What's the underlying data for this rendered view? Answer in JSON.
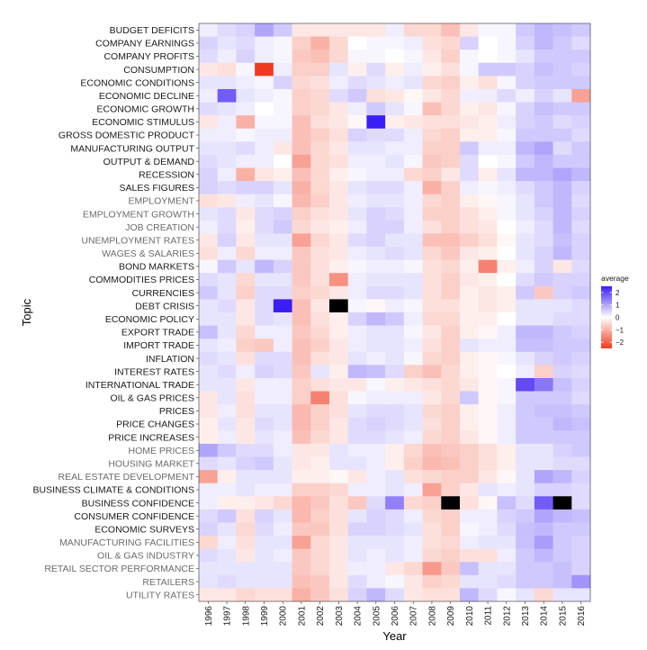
{
  "chart_data": {
    "type": "heatmap",
    "xlabel": "Year",
    "ylabel": "Topic",
    "x": [
      "1996",
      "1997",
      "1998",
      "1999",
      "2000",
      "2001",
      "2002",
      "2003",
      "2004",
      "2005",
      "2006",
      "2007",
      "2008",
      "2009",
      "2010",
      "2011",
      "2012",
      "2013",
      "2014",
      "2015",
      "2016"
    ],
    "y": [
      "BUDGET DEFICITS",
      "COMPANY EARNINGS",
      "COMPANY PROFITS",
      "CONSUMPTION",
      "ECONOMIC CONDITIONS",
      "ECONOMIC DECLINE",
      "ECONOMIC GROWTH",
      "ECONOMIC STIMULUS",
      "GROSS DOMESTIC PRODUCT",
      "MANUFACTURING OUTPUT",
      "OUTPUT & DEMAND",
      "RECESSION",
      "SALES FIGURES",
      "EMPLOYMENT",
      "EMPLOYMENT GROWTH",
      "JOB CREATION",
      "UNEMPLOYMENT RATES",
      "WAGES & SALARIES",
      "BOND MARKETS",
      "COMMODITIES PRICES",
      "CURRENCIES",
      "DEBT CRISIS",
      "ECONOMIC POLICY",
      "EXPORT TRADE",
      "IMPORT TRADE",
      "INFLATION",
      "INTEREST RATES",
      "INTERNATIONAL TRADE",
      "OIL & GAS PRICES",
      "PRICES",
      "PRICE CHANGES",
      "PRICE INCREASES",
      "HOME PRICES",
      "HOUSING MARKET",
      "REAL ESTATE DEVELOPMENT",
      "BUSINESS CLIMATE & CONDITIONS",
      "BUSINESS CONFIDENCE",
      "CONSUMER CONFIDENCE",
      "ECONOMIC SURVEYS",
      "MANUFACTURING FACILITIES",
      "OIL & GAS INDUSTRY",
      "RETAIL SECTOR PERFORMANCE",
      "RETAILERS",
      "UTILITY RATES"
    ],
    "muted_rows": [
      "EMPLOYMENT",
      "EMPLOYMENT GROWTH",
      "JOB CREATION",
      "UNEMPLOYMENT RATES",
      "WAGES & SALARIES",
      "HOME PRICES",
      "HOUSING MARKET",
      "REAL ESTATE DEVELOPMENT",
      "MANUFACTURING FACILITIES",
      "OIL & GAS INDUSTRY",
      "RETAIL SECTOR PERFORMANCE",
      "RETAILERS",
      "UTILITY RATES"
    ],
    "values": [
      [
        0.2,
        0.4,
        0.5,
        1.0,
        0.6,
        -0.3,
        -0.3,
        -0.3,
        -0.3,
        -0.3,
        0.2,
        -0.5,
        -0.5,
        -0.8,
        -0.3,
        0.1,
        0.1,
        0.6,
        0.8,
        0.7,
        0.6
      ],
      [
        0.5,
        0.3,
        0.4,
        0.2,
        0.1,
        -0.6,
        -1.0,
        -0.5,
        0.0,
        0.1,
        0.1,
        0.2,
        -0.4,
        -0.5,
        0.5,
        0.0,
        0.1,
        0.5,
        0.8,
        0.6,
        0.4
      ],
      [
        0.4,
        0.2,
        0.5,
        0.2,
        0.1,
        -0.7,
        -0.8,
        -0.5,
        0.1,
        0.1,
        0.0,
        0.1,
        -0.3,
        -0.6,
        0.1,
        0.0,
        0.1,
        0.3,
        0.6,
        0.6,
        0.6
      ],
      [
        -0.3,
        -0.4,
        0.1,
        -2.5,
        0.2,
        -0.6,
        -0.6,
        0.3,
        -0.2,
        0.4,
        -0.2,
        0.2,
        -0.2,
        -0.4,
        0.1,
        0.6,
        0.6,
        0.5,
        0.7,
        0.6,
        0.5
      ],
      [
        0.3,
        0.3,
        0.2,
        0.1,
        0.5,
        -0.5,
        -0.4,
        0.2,
        0.4,
        0.3,
        0.2,
        0.3,
        -0.5,
        -0.6,
        -0.2,
        -0.4,
        0.1,
        0.5,
        0.6,
        0.6,
        0.6
      ],
      [
        0.2,
        1.8,
        0.3,
        0.2,
        0.1,
        -0.6,
        -0.5,
        0.4,
        0.6,
        -0.4,
        -0.3,
        -0.1,
        -0.3,
        -0.5,
        0.2,
        0.2,
        0.4,
        0.2,
        0.5,
        0.3,
        -1.2
      ],
      [
        0.4,
        0.3,
        0.2,
        0.0,
        0.1,
        -0.6,
        -0.5,
        -0.3,
        0.2,
        0.6,
        0.3,
        0.1,
        -0.8,
        -0.5,
        -0.2,
        -0.3,
        0.1,
        0.5,
        0.7,
        0.6,
        0.6
      ],
      [
        -0.3,
        0.2,
        -1.0,
        0.1,
        0.1,
        -0.8,
        -0.4,
        -0.3,
        -0.1,
        2.5,
        -0.2,
        -0.3,
        -0.4,
        -0.4,
        -0.3,
        -0.2,
        0.2,
        0.5,
        0.6,
        0.4,
        0.5
      ],
      [
        0.2,
        0.2,
        0.1,
        0.2,
        0.2,
        -0.8,
        -0.6,
        -0.4,
        0.5,
        0.4,
        0.4,
        0.2,
        -0.5,
        -0.6,
        -0.2,
        -0.2,
        0.1,
        0.6,
        0.6,
        0.6,
        0.4
      ],
      [
        0.3,
        0.3,
        0.4,
        0.2,
        -0.3,
        -0.8,
        -0.5,
        -0.3,
        0.3,
        0.3,
        0.2,
        0.2,
        -0.6,
        -0.6,
        0.6,
        0.2,
        0.2,
        0.8,
        1.0,
        0.4,
        0.6
      ],
      [
        0.4,
        0.3,
        0.2,
        0.2,
        0.0,
        -1.2,
        -0.5,
        -0.4,
        0.2,
        0.2,
        0.3,
        0.1,
        -0.7,
        -0.6,
        0.4,
        0.0,
        0.1,
        0.6,
        0.8,
        0.6,
        0.6
      ],
      [
        0.5,
        0.2,
        -1.0,
        -0.3,
        -0.2,
        -0.8,
        -0.5,
        -0.2,
        0.1,
        0.2,
        0.2,
        -0.5,
        -0.6,
        -0.3,
        0.4,
        -0.2,
        0.3,
        0.8,
        0.8,
        1.0,
        0.8
      ],
      [
        0.5,
        0.4,
        0.5,
        0.5,
        0.3,
        -1.0,
        -0.5,
        -0.3,
        0.3,
        0.4,
        0.4,
        0.2,
        -1.0,
        -0.6,
        0.2,
        0.1,
        0.2,
        0.4,
        0.6,
        0.8,
        0.5
      ],
      [
        -0.4,
        -0.3,
        0.2,
        0.3,
        0.1,
        -0.9,
        -0.6,
        -0.3,
        0.2,
        0.3,
        0.3,
        0.2,
        -0.5,
        -0.6,
        -0.2,
        -0.1,
        0.1,
        0.3,
        0.6,
        0.8,
        0.4
      ],
      [
        0.3,
        0.4,
        -0.3,
        0.4,
        0.5,
        -0.6,
        -0.4,
        -0.3,
        0.3,
        0.5,
        0.4,
        0.2,
        -0.6,
        -0.6,
        -0.4,
        -0.2,
        0.1,
        0.3,
        0.5,
        0.8,
        0.5
      ],
      [
        0.2,
        0.4,
        -0.2,
        0.4,
        0.6,
        -0.5,
        -0.3,
        -0.2,
        0.2,
        0.5,
        0.5,
        0.2,
        -0.4,
        -0.6,
        -0.4,
        -0.3,
        0.0,
        0.2,
        0.4,
        0.8,
        0.4
      ],
      [
        -0.3,
        0.5,
        -0.3,
        0.3,
        0.3,
        -1.2,
        -0.5,
        -0.3,
        0.4,
        0.5,
        0.3,
        0.3,
        -0.8,
        -0.8,
        -0.6,
        -0.4,
        -0.1,
        0.3,
        0.4,
        0.7,
        0.5
      ],
      [
        -0.4,
        0.2,
        -0.5,
        0.2,
        0.2,
        -0.7,
        -0.4,
        -0.3,
        0.2,
        0.3,
        0.4,
        0.3,
        -0.5,
        -0.7,
        -0.3,
        -0.2,
        0.0,
        0.3,
        0.5,
        0.8,
        0.5
      ],
      [
        0.1,
        0.6,
        0.3,
        0.8,
        0.5,
        -0.7,
        -0.4,
        -0.2,
        0.1,
        0.2,
        0.2,
        0.1,
        -0.4,
        -0.5,
        -0.2,
        -1.6,
        -0.2,
        0.2,
        0.5,
        -0.3,
        0.4
      ],
      [
        0.4,
        0.3,
        -0.5,
        0.3,
        0.3,
        -0.7,
        -0.4,
        -1.4,
        0.2,
        0.3,
        0.3,
        0.3,
        -0.4,
        -0.6,
        -0.3,
        -0.2,
        0.0,
        0.4,
        0.6,
        0.5,
        0.5
      ],
      [
        0.6,
        0.3,
        -0.6,
        0.4,
        0.4,
        -0.6,
        -0.5,
        -0.3,
        0.2,
        0.4,
        0.4,
        0.3,
        -0.4,
        -0.6,
        -0.2,
        -0.3,
        -0.2,
        0.6,
        -0.7,
        0.5,
        0.6
      ],
      [
        0.3,
        0.4,
        -0.3,
        0.4,
        2.5,
        -0.8,
        -0.3,
        null,
        0.1,
        -0.1,
        0.2,
        0.1,
        -0.4,
        -0.4,
        -0.2,
        -0.3,
        -0.2,
        0.3,
        0.3,
        0.3,
        0.4
      ],
      [
        0.3,
        0.3,
        -0.3,
        0.4,
        0.3,
        -0.8,
        -0.4,
        -0.2,
        0.5,
        0.8,
        0.6,
        0.2,
        -0.5,
        -0.5,
        -0.2,
        -0.2,
        0.0,
        0.3,
        0.3,
        0.4,
        0.4
      ],
      [
        0.7,
        0.3,
        -0.5,
        0.2,
        0.2,
        -0.7,
        -0.5,
        -0.2,
        0.2,
        0.3,
        0.3,
        0.1,
        -0.3,
        -0.6,
        -0.2,
        -0.1,
        0.2,
        0.8,
        0.8,
        0.6,
        0.5
      ],
      [
        0.3,
        0.2,
        -0.6,
        -0.7,
        0.2,
        -0.8,
        -0.6,
        -0.3,
        0.2,
        0.3,
        0.3,
        0.2,
        -0.4,
        -0.6,
        0.3,
        0.2,
        0.2,
        0.7,
        0.7,
        0.6,
        0.6
      ],
      [
        0.4,
        0.3,
        -0.4,
        0.4,
        0.4,
        -0.8,
        -0.4,
        -0.3,
        0.3,
        0.2,
        0.3,
        0.1,
        -0.5,
        -0.6,
        -0.2,
        -0.1,
        0.1,
        0.3,
        0.5,
        0.6,
        0.5
      ],
      [
        0.3,
        0.4,
        0.2,
        0.5,
        0.4,
        -0.7,
        0.3,
        -0.2,
        0.8,
        0.7,
        0.4,
        -0.6,
        -0.8,
        -0.5,
        -0.2,
        -0.1,
        0.0,
        0.2,
        -0.6,
        0.5,
        0.4
      ],
      [
        0.3,
        0.3,
        -0.3,
        0.2,
        0.2,
        -0.6,
        -0.4,
        -0.3,
        -0.3,
        0.1,
        -0.2,
        -0.3,
        -0.4,
        -0.5,
        -0.3,
        -0.1,
        0.1,
        2.0,
        1.5,
        0.7,
        0.5
      ],
      [
        -0.3,
        0.3,
        -0.4,
        0.2,
        0.2,
        -0.6,
        -1.6,
        -0.4,
        0.1,
        0.2,
        0.2,
        0.2,
        -0.3,
        -0.5,
        0.6,
        -0.1,
        0.1,
        0.6,
        0.6,
        0.6,
        0.4
      ],
      [
        -0.3,
        0.2,
        -0.4,
        0.3,
        0.3,
        -0.9,
        -0.6,
        -0.4,
        0.3,
        0.4,
        0.4,
        0.3,
        -0.5,
        -0.6,
        -0.2,
        -0.1,
        0.2,
        0.6,
        0.7,
        0.7,
        0.6
      ],
      [
        -0.2,
        0.3,
        -0.3,
        0.4,
        0.3,
        -0.9,
        -0.6,
        -0.3,
        0.4,
        0.5,
        0.4,
        0.3,
        -0.4,
        -0.6,
        -0.2,
        -0.1,
        0.2,
        0.6,
        0.6,
        0.8,
        0.7
      ],
      [
        -0.2,
        0.2,
        -0.3,
        0.3,
        0.2,
        -0.8,
        -0.5,
        -0.3,
        0.4,
        0.4,
        0.3,
        0.2,
        -0.5,
        -0.6,
        -0.3,
        -0.1,
        0.2,
        0.6,
        0.6,
        0.6,
        0.6
      ],
      [
        1.0,
        0.6,
        0.4,
        0.4,
        0.2,
        -0.3,
        -0.3,
        0.3,
        0.2,
        0.2,
        -0.2,
        -0.5,
        -0.8,
        -0.7,
        -0.6,
        -0.4,
        -0.2,
        0.3,
        0.3,
        0.5,
        0.6
      ],
      [
        0.4,
        0.3,
        0.5,
        0.6,
        0.3,
        -0.3,
        -0.2,
        0.3,
        0.3,
        0.2,
        -0.2,
        -0.6,
        -0.9,
        -0.8,
        -0.6,
        -0.4,
        -0.2,
        0.3,
        0.3,
        0.4,
        0.4
      ],
      [
        -1.2,
        -0.2,
        0.3,
        0.3,
        0.3,
        -0.2,
        -0.2,
        -0.1,
        -0.3,
        0.2,
        0.3,
        -0.4,
        -0.5,
        -0.6,
        -0.6,
        -0.3,
        -0.1,
        0.3,
        1.0,
        0.8,
        0.5
      ],
      [
        0.2,
        0.2,
        0.3,
        0.2,
        0.2,
        -0.6,
        -0.6,
        -0.5,
        0.2,
        0.2,
        0.3,
        0.2,
        -1.2,
        -0.6,
        -0.3,
        0.3,
        0.2,
        0.3,
        0.5,
        0.5,
        0.4
      ],
      [
        0.2,
        -0.2,
        -0.2,
        -0.3,
        -0.5,
        -0.9,
        -0.7,
        -0.4,
        -0.7,
        0.4,
        1.4,
        -0.5,
        -0.6,
        null,
        -0.4,
        -0.1,
        0.7,
        0.4,
        1.8,
        null,
        0.4
      ],
      [
        0.4,
        0.6,
        -0.4,
        0.5,
        0.3,
        -0.9,
        -0.6,
        -0.4,
        0.3,
        0.5,
        0.4,
        0.2,
        -0.5,
        -0.6,
        0.2,
        0.2,
        0.5,
        0.6,
        1.0,
        0.8,
        0.7
      ],
      [
        0.5,
        0.3,
        -0.5,
        0.4,
        0.2,
        -0.7,
        -0.7,
        -0.4,
        0.5,
        0.5,
        0.4,
        0.3,
        -0.4,
        -0.6,
        0.1,
        0.2,
        0.4,
        0.7,
        0.8,
        0.6,
        0.6
      ],
      [
        -0.5,
        0.2,
        -0.4,
        0.3,
        0.3,
        -1.2,
        -0.5,
        -0.3,
        0.3,
        0.3,
        0.3,
        0.2,
        -0.4,
        -0.5,
        0.2,
        0.3,
        0.3,
        0.7,
        1.1,
        0.6,
        0.5
      ],
      [
        0.4,
        0.3,
        -0.3,
        0.3,
        0.2,
        -0.7,
        -0.5,
        -0.3,
        0.3,
        0.2,
        0.3,
        0.2,
        -0.5,
        -0.6,
        -0.4,
        -0.4,
        0.2,
        0.6,
        0.8,
        0.6,
        0.5
      ],
      [
        0.3,
        0.3,
        0.3,
        0.3,
        0.3,
        -0.7,
        -0.5,
        -0.3,
        0.2,
        0.2,
        -0.3,
        -0.5,
        -1.3,
        -0.7,
        0.7,
        0.3,
        0.3,
        0.6,
        0.6,
        0.7,
        0.5
      ],
      [
        0.3,
        0.4,
        0.3,
        0.3,
        0.3,
        -0.8,
        -0.7,
        -0.3,
        0.4,
        0.2,
        0.1,
        -0.3,
        -0.6,
        -0.5,
        0.3,
        0.3,
        0.4,
        0.6,
        0.6,
        0.7,
        1.2
      ],
      [
        -0.3,
        -0.3,
        -0.5,
        -0.4,
        -0.4,
        -1.0,
        -0.7,
        -0.4,
        0.5,
        0.8,
        0.4,
        -0.3,
        -0.4,
        -0.4,
        0.8,
        0.4,
        0.1,
        0.3,
        -0.5,
        0.3,
        0.3
      ]
    ],
    "colorscale": {
      "low": "#f03b20",
      "mid": "#ffffff",
      "high": "#3b1df5",
      "missing": "#000000"
    },
    "zlim": [
      -2.5,
      2.5
    ],
    "legend": {
      "title": "average",
      "ticks": [
        2,
        1,
        0,
        -1,
        -2
      ],
      "labels": [
        "2",
        "1",
        "0",
        "−1",
        "−2"
      ],
      "placement": "right"
    }
  }
}
